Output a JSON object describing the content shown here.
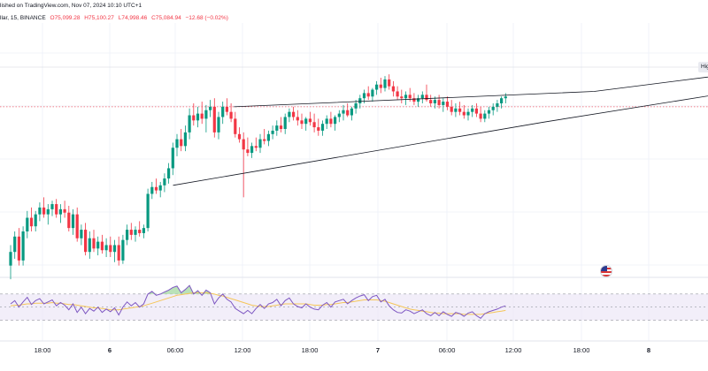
{
  "header": {
    "published": "lished on TradingView.com, Nov 07, 2024 10:10 UTC+1",
    "symbol": "llar, 15, BINANCE",
    "open": "O75,099.28",
    "high": "H75,100.27",
    "low": "L74,998.46",
    "close": "C75,084.94",
    "change": "−12.68 (−0.02%)"
  },
  "price_label": "Hig",
  "flag_icon": "us-flag-icon",
  "colors": {
    "up": "#089981",
    "down": "#f23645",
    "wedge": "#131722",
    "rsi_line": "#7e57c2",
    "rsi_ma": "#f5c659",
    "rsi_band": "#ede7f6",
    "rsi_overbought_fill": "#b2dfb0"
  },
  "chart_data": {
    "type": "candlestick",
    "x_tick_labels": [
      "18:00",
      "6",
      "06:00",
      "12:00",
      "18:00",
      "7",
      "06:00",
      "12:00",
      "18:00",
      "8"
    ],
    "candles": [
      [
        0.1,
        0.22,
        0.02,
        0.18
      ],
      [
        0.18,
        0.3,
        0.14,
        0.27
      ],
      [
        0.27,
        0.32,
        0.1,
        0.13
      ],
      [
        0.13,
        0.33,
        0.1,
        0.3
      ],
      [
        0.3,
        0.42,
        0.26,
        0.38
      ],
      [
        0.38,
        0.44,
        0.3,
        0.33
      ],
      [
        0.33,
        0.42,
        0.3,
        0.4
      ],
      [
        0.4,
        0.47,
        0.36,
        0.44
      ],
      [
        0.44,
        0.5,
        0.38,
        0.4
      ],
      [
        0.4,
        0.46,
        0.34,
        0.43
      ],
      [
        0.43,
        0.48,
        0.39,
        0.46
      ],
      [
        0.46,
        0.49,
        0.38,
        0.4
      ],
      [
        0.4,
        0.46,
        0.35,
        0.43
      ],
      [
        0.43,
        0.48,
        0.38,
        0.41
      ],
      [
        0.41,
        0.45,
        0.3,
        0.32
      ],
      [
        0.32,
        0.43,
        0.28,
        0.4
      ],
      [
        0.4,
        0.44,
        0.24,
        0.26
      ],
      [
        0.26,
        0.34,
        0.22,
        0.31
      ],
      [
        0.31,
        0.35,
        0.16,
        0.18
      ],
      [
        0.18,
        0.3,
        0.14,
        0.26
      ],
      [
        0.26,
        0.31,
        0.18,
        0.2
      ],
      [
        0.2,
        0.27,
        0.16,
        0.24
      ],
      [
        0.24,
        0.28,
        0.17,
        0.19
      ],
      [
        0.19,
        0.26,
        0.15,
        0.22
      ],
      [
        0.22,
        0.27,
        0.15,
        0.18
      ],
      [
        0.18,
        0.25,
        0.12,
        0.22
      ],
      [
        0.22,
        0.27,
        0.1,
        0.13
      ],
      [
        0.13,
        0.28,
        0.11,
        0.25
      ],
      [
        0.25,
        0.34,
        0.22,
        0.31
      ],
      [
        0.31,
        0.35,
        0.25,
        0.28
      ],
      [
        0.28,
        0.33,
        0.24,
        0.31
      ],
      [
        0.31,
        0.36,
        0.27,
        0.29
      ],
      [
        0.29,
        0.34,
        0.26,
        0.32
      ],
      [
        0.32,
        0.55,
        0.3,
        0.52
      ],
      [
        0.52,
        0.59,
        0.49,
        0.56
      ],
      [
        0.56,
        0.61,
        0.52,
        0.54
      ],
      [
        0.54,
        0.59,
        0.5,
        0.57
      ],
      [
        0.57,
        0.64,
        0.53,
        0.61
      ],
      [
        0.61,
        0.7,
        0.58,
        0.67
      ],
      [
        0.67,
        0.82,
        0.63,
        0.79
      ],
      [
        0.79,
        0.87,
        0.74,
        0.84
      ],
      [
        0.84,
        0.9,
        0.77,
        0.8
      ],
      [
        0.8,
        0.92,
        0.77,
        0.88
      ],
      [
        0.88,
        1.02,
        0.84,
        0.98
      ],
      [
        0.98,
        1.05,
        0.92,
        0.95
      ],
      [
        0.95,
        1.03,
        0.91,
        0.99
      ],
      [
        0.99,
        1.06,
        0.93,
        0.96
      ],
      [
        0.96,
        1.04,
        0.88,
        1.01
      ],
      [
        1.01,
        1.07,
        0.97,
        1.03
      ],
      [
        1.03,
        1.08,
        0.85,
        0.88
      ],
      [
        0.88,
        1.0,
        0.84,
        0.97
      ],
      [
        0.97,
        1.06,
        0.93,
        1.03
      ],
      [
        1.03,
        1.08,
        0.98,
        1.0
      ],
      [
        1.0,
        1.05,
        0.94,
        0.96
      ],
      [
        0.96,
        1.0,
        0.85,
        0.87
      ],
      [
        0.87,
        0.91,
        0.82,
        0.84
      ],
      [
        0.84,
        0.88,
        0.5,
        0.78
      ],
      [
        0.78,
        0.85,
        0.74,
        0.76
      ],
      [
        0.76,
        0.82,
        0.73,
        0.8
      ],
      [
        0.8,
        0.85,
        0.77,
        0.79
      ],
      [
        0.79,
        0.87,
        0.76,
        0.84
      ],
      [
        0.84,
        0.9,
        0.81,
        0.83
      ],
      [
        0.83,
        0.89,
        0.8,
        0.87
      ],
      [
        0.87,
        0.92,
        0.84,
        0.89
      ],
      [
        0.89,
        0.95,
        0.86,
        0.92
      ],
      [
        0.92,
        0.97,
        0.88,
        0.9
      ],
      [
        0.9,
        0.99,
        0.87,
        0.97
      ],
      [
        0.97,
        1.02,
        0.94,
        1.0
      ],
      [
        1.0,
        1.03,
        0.95,
        0.97
      ],
      [
        0.97,
        1.01,
        0.92,
        0.95
      ],
      [
        0.95,
        0.99,
        0.9,
        0.93
      ],
      [
        0.93,
        0.97,
        0.89,
        0.96
      ],
      [
        0.96,
        1.0,
        0.92,
        0.94
      ],
      [
        0.94,
        0.99,
        0.88,
        0.91
      ],
      [
        0.91,
        0.96,
        0.86,
        0.89
      ],
      [
        0.89,
        0.95,
        0.86,
        0.93
      ],
      [
        0.93,
        0.98,
        0.9,
        0.96
      ],
      [
        0.96,
        1.0,
        0.91,
        0.93
      ],
      [
        0.93,
        0.98,
        0.89,
        0.97
      ],
      [
        0.97,
        1.01,
        0.94,
        0.99
      ],
      [
        0.99,
        1.04,
        0.95,
        1.01
      ],
      [
        1.01,
        1.05,
        0.97,
        0.98
      ],
      [
        0.98,
        1.03,
        0.95,
        1.02
      ],
      [
        1.02,
        1.07,
        0.99,
        1.05
      ],
      [
        1.05,
        1.1,
        1.02,
        1.08
      ],
      [
        1.08,
        1.13,
        1.05,
        1.11
      ],
      [
        1.11,
        1.15,
        1.07,
        1.09
      ],
      [
        1.09,
        1.14,
        1.06,
        1.13
      ],
      [
        1.13,
        1.18,
        1.1,
        1.16
      ],
      [
        1.16,
        1.2,
        1.11,
        1.14
      ],
      [
        1.14,
        1.21,
        1.12,
        1.19
      ],
      [
        1.19,
        1.22,
        1.13,
        1.15
      ],
      [
        1.15,
        1.18,
        1.09,
        1.12
      ],
      [
        1.12,
        1.15,
        1.07,
        1.09
      ],
      [
        1.09,
        1.13,
        1.05,
        1.08
      ],
      [
        1.08,
        1.12,
        1.04,
        1.1
      ],
      [
        1.1,
        1.14,
        1.06,
        1.08
      ],
      [
        1.08,
        1.11,
        1.04,
        1.06
      ],
      [
        1.06,
        1.1,
        1.03,
        1.08
      ],
      [
        1.08,
        1.12,
        1.05,
        1.1
      ],
      [
        1.1,
        1.16,
        1.06,
        1.07
      ],
      [
        1.07,
        1.1,
        1.03,
        1.05
      ],
      [
        1.05,
        1.09,
        1.02,
        1.07
      ],
      [
        1.07,
        1.1,
        1.02,
        1.04
      ],
      [
        1.04,
        1.08,
        1.0,
        1.06
      ],
      [
        1.06,
        1.09,
        1.01,
        1.03
      ],
      [
        1.03,
        1.07,
        0.98,
        1.0
      ],
      [
        1.0,
        1.05,
        0.97,
        1.02
      ],
      [
        1.02,
        1.06,
        0.98,
        1.0
      ],
      [
        1.0,
        1.04,
        0.96,
        0.98
      ],
      [
        0.98,
        1.02,
        0.95,
        1.0
      ],
      [
        1.0,
        1.04,
        0.97,
        1.02
      ],
      [
        1.02,
        1.05,
        0.97,
        0.99
      ],
      [
        0.99,
        1.03,
        0.94,
        0.96
      ],
      [
        0.96,
        1.01,
        0.94,
        0.99
      ],
      [
        0.99,
        1.03,
        0.96,
        1.01
      ],
      [
        1.01,
        1.05,
        0.98,
        1.03
      ],
      [
        1.03,
        1.07,
        1.0,
        1.05
      ],
      [
        1.05,
        1.09,
        1.02,
        1.08
      ],
      [
        1.08,
        1.11,
        1.05,
        1.09
      ]
    ],
    "rsi": [
      55,
      60,
      50,
      58,
      65,
      54,
      60,
      63,
      55,
      58,
      61,
      52,
      57,
      53,
      46,
      55,
      42,
      50,
      40,
      48,
      44,
      50,
      42,
      47,
      43,
      49,
      38,
      50,
      58,
      52,
      57,
      50,
      55,
      70,
      74,
      68,
      70,
      73,
      76,
      80,
      82,
      72,
      77,
      83,
      70,
      75,
      68,
      76,
      72,
      55,
      64,
      70,
      62,
      58,
      48,
      44,
      40,
      45,
      40,
      48,
      54,
      48,
      55,
      57,
      62,
      52,
      60,
      64,
      55,
      51,
      49,
      55,
      50,
      47,
      46,
      53,
      57,
      50,
      58,
      60,
      62,
      55,
      60,
      64,
      67,
      69,
      60,
      66,
      68,
      58,
      62,
      52,
      46,
      42,
      41,
      46,
      44,
      40,
      43,
      46,
      40,
      37,
      42,
      37,
      43,
      39,
      36,
      42,
      40,
      36,
      41,
      43,
      37,
      33,
      40,
      43,
      45,
      47,
      50,
      52
    ],
    "rsi_ma": [
      52,
      53,
      53,
      54,
      55,
      55,
      56,
      56,
      56,
      56,
      57,
      56,
      56,
      55,
      54,
      54,
      53,
      52,
      51,
      50,
      49,
      49,
      48,
      47,
      46,
      46,
      46,
      47,
      48,
      49,
      50,
      51,
      52,
      54,
      56,
      58,
      60,
      62,
      64,
      66,
      68,
      69,
      70,
      71,
      72,
      72,
      72,
      72,
      71,
      70,
      68,
      67,
      65,
      63,
      61,
      59,
      57,
      55,
      53,
      52,
      51,
      51,
      51,
      52,
      53,
      54,
      55,
      55,
      55,
      55,
      55,
      55,
      54,
      53,
      53,
      53,
      54,
      54,
      55,
      56,
      57,
      57,
      58,
      59,
      60,
      61,
      61,
      61,
      61,
      60,
      59,
      57,
      55,
      53,
      51,
      49,
      47,
      46,
      45,
      44,
      43,
      42,
      41,
      41,
      40,
      40,
      40,
      40,
      40,
      39,
      39,
      39,
      39,
      39,
      40,
      41,
      42,
      43,
      44,
      45
    ],
    "rsi_levels": [
      70,
      50,
      30
    ],
    "wedge_upper": [
      [
        0.44,
        1.03
      ],
      [
        1.15,
        1.12
      ],
      [
        2.0,
        1.44
      ]
    ],
    "wedge_lower": [
      [
        0.32,
        0.57
      ],
      [
        1.05,
        0.94
      ],
      [
        2.0,
        1.39
      ]
    ],
    "resistance_level": 1.03,
    "ylim": [
      0,
      1.5
    ]
  }
}
